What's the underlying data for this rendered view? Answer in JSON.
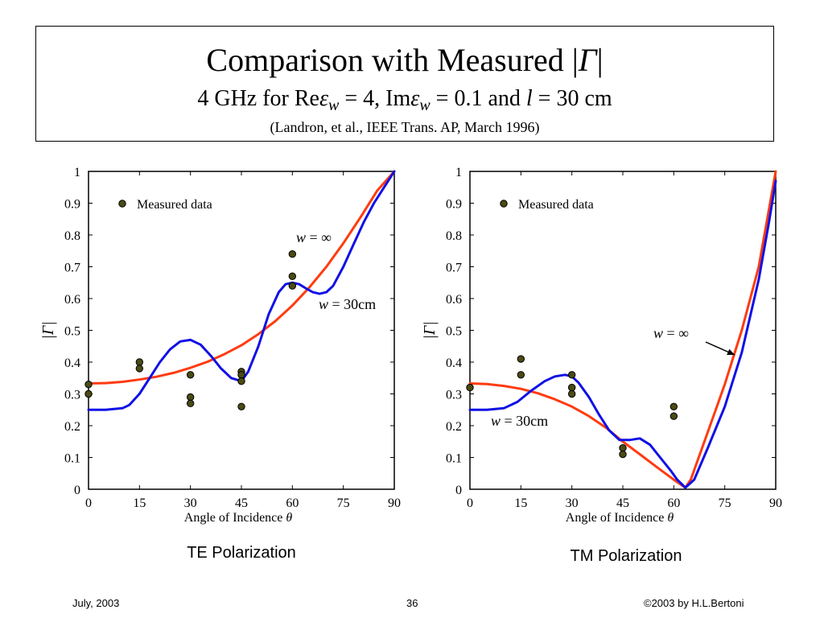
{
  "slide": {
    "title_prefix": "Comparison with Measured |",
    "title_symbol": "Γ",
    "title_suffix": "|",
    "sub_part1": "4 GHz for Re",
    "sub_eps1": "ε",
    "sub_w1": "w",
    "sub_part2": " = 4, Im",
    "sub_eps2": "ε",
    "sub_w2": "w",
    "sub_part3": " = 0.1 and ",
    "sub_l": "l",
    "sub_part4": " = 30 cm",
    "reference": "(Landron, et al., IEEE Trans. AP, March 1996)",
    "caption_te": "TE Polarization",
    "caption_tm": "TM Polarization",
    "footer_date": "July, 2003",
    "footer_page": "36",
    "footer_copyright": "©2003 by H.L.Bertoni"
  },
  "colors": {
    "w_inf": "#ff3b10",
    "w_30": "#1010e6",
    "marker_fill": "#4a4a14"
  },
  "chart_data": [
    {
      "type": "line",
      "panel": "TE",
      "xlim": [
        0,
        90
      ],
      "ylim": [
        0,
        1
      ],
      "x_ticks": [
        "0",
        "15",
        "30",
        "45",
        "60",
        "75",
        "90"
      ],
      "y_ticks": [
        "0",
        "0.1",
        "0.2",
        "0.3",
        "0.4",
        "0.5",
        "0.6",
        "0.7",
        "0.8",
        "0.9",
        "1"
      ],
      "xlabel_text": "Angle of Incidence ",
      "xlabel_symbol": "θ",
      "ylabel": "|Γ|",
      "legend": "Measured data",
      "series": [
        {
          "name": "w = ∞",
          "label_w": "w",
          "label_rest": " = ∞",
          "color": "#ff3b10",
          "x": [
            0,
            5,
            10,
            15,
            20,
            25,
            30,
            35,
            40,
            45,
            50,
            55,
            60,
            65,
            70,
            75,
            80,
            85,
            90
          ],
          "y": [
            0.333,
            0.334,
            0.338,
            0.345,
            0.354,
            0.366,
            0.382,
            0.401,
            0.425,
            0.453,
            0.488,
            0.529,
            0.578,
            0.635,
            0.7,
            0.774,
            0.855,
            0.94,
            1.0
          ]
        },
        {
          "name": "w = 30cm",
          "label_w": "w",
          "label_rest": " = 30cm",
          "color": "#1010e6",
          "x": [
            0,
            5,
            10,
            12,
            15,
            18,
            21,
            24,
            27,
            30,
            33,
            36,
            39,
            42,
            45,
            47,
            50,
            53,
            56,
            58,
            60,
            62,
            64,
            66,
            68,
            70,
            72,
            75,
            78,
            81,
            84,
            87,
            90
          ],
          "y": [
            0.25,
            0.25,
            0.255,
            0.265,
            0.3,
            0.35,
            0.4,
            0.44,
            0.465,
            0.47,
            0.455,
            0.42,
            0.38,
            0.35,
            0.34,
            0.37,
            0.45,
            0.55,
            0.62,
            0.645,
            0.65,
            0.645,
            0.632,
            0.62,
            0.615,
            0.62,
            0.64,
            0.7,
            0.77,
            0.84,
            0.9,
            0.95,
            1.0
          ]
        }
      ],
      "measured": [
        [
          0,
          0.33
        ],
        [
          0,
          0.3
        ],
        [
          15,
          0.4
        ],
        [
          15,
          0.38
        ],
        [
          30,
          0.36
        ],
        [
          30,
          0.29
        ],
        [
          30,
          0.27
        ],
        [
          45,
          0.37
        ],
        [
          45,
          0.36
        ],
        [
          45,
          0.34
        ],
        [
          45,
          0.26
        ],
        [
          60,
          0.74
        ],
        [
          60,
          0.67
        ],
        [
          60,
          0.64
        ]
      ]
    },
    {
      "type": "line",
      "panel": "TM",
      "xlim": [
        0,
        90
      ],
      "ylim": [
        0,
        1
      ],
      "x_ticks": [
        "0",
        "15",
        "30",
        "45",
        "60",
        "75",
        "90"
      ],
      "y_ticks": [
        "0",
        "0.1",
        "0.2",
        "0.3",
        "0.4",
        "0.5",
        "0.6",
        "0.7",
        "0.8",
        "0.9",
        "1"
      ],
      "xlabel_text": "Angle of Incidence ",
      "xlabel_symbol": "θ",
      "ylabel": "|Γ|",
      "legend": "Measured data",
      "series": [
        {
          "name": "w = ∞",
          "label_w": "w",
          "label_rest": " = ∞",
          "color": "#ff3b10",
          "x": [
            0,
            5,
            10,
            15,
            20,
            25,
            30,
            35,
            40,
            45,
            50,
            55,
            60,
            63.4,
            65,
            70,
            75,
            80,
            85,
            90
          ],
          "y": [
            0.333,
            0.331,
            0.325,
            0.316,
            0.302,
            0.283,
            0.26,
            0.23,
            0.194,
            0.15,
            0.11,
            0.07,
            0.03,
            0.005,
            0.03,
            0.18,
            0.33,
            0.5,
            0.7,
            1.0
          ]
        },
        {
          "name": "w = 30cm",
          "label_w": "w",
          "label_rest": " = 30cm",
          "color": "#1010e6",
          "x": [
            0,
            5,
            10,
            14,
            18,
            22,
            25,
            28,
            30,
            32,
            35,
            38,
            41,
            44,
            47,
            50,
            53,
            56,
            59,
            61,
            63.4,
            66,
            70,
            75,
            80,
            85,
            88,
            90
          ],
          "y": [
            0.25,
            0.25,
            0.255,
            0.275,
            0.31,
            0.34,
            0.355,
            0.36,
            0.355,
            0.335,
            0.29,
            0.235,
            0.185,
            0.155,
            0.155,
            0.16,
            0.14,
            0.1,
            0.06,
            0.03,
            0.005,
            0.03,
            0.13,
            0.26,
            0.43,
            0.66,
            0.84,
            0.97
          ]
        }
      ],
      "measured": [
        [
          0,
          0.32
        ],
        [
          15,
          0.41
        ],
        [
          15,
          0.36
        ],
        [
          30,
          0.36
        ],
        [
          30,
          0.32
        ],
        [
          30,
          0.3
        ],
        [
          45,
          0.13
        ],
        [
          45,
          0.11
        ],
        [
          60,
          0.26
        ],
        [
          60,
          0.23
        ]
      ]
    }
  ]
}
